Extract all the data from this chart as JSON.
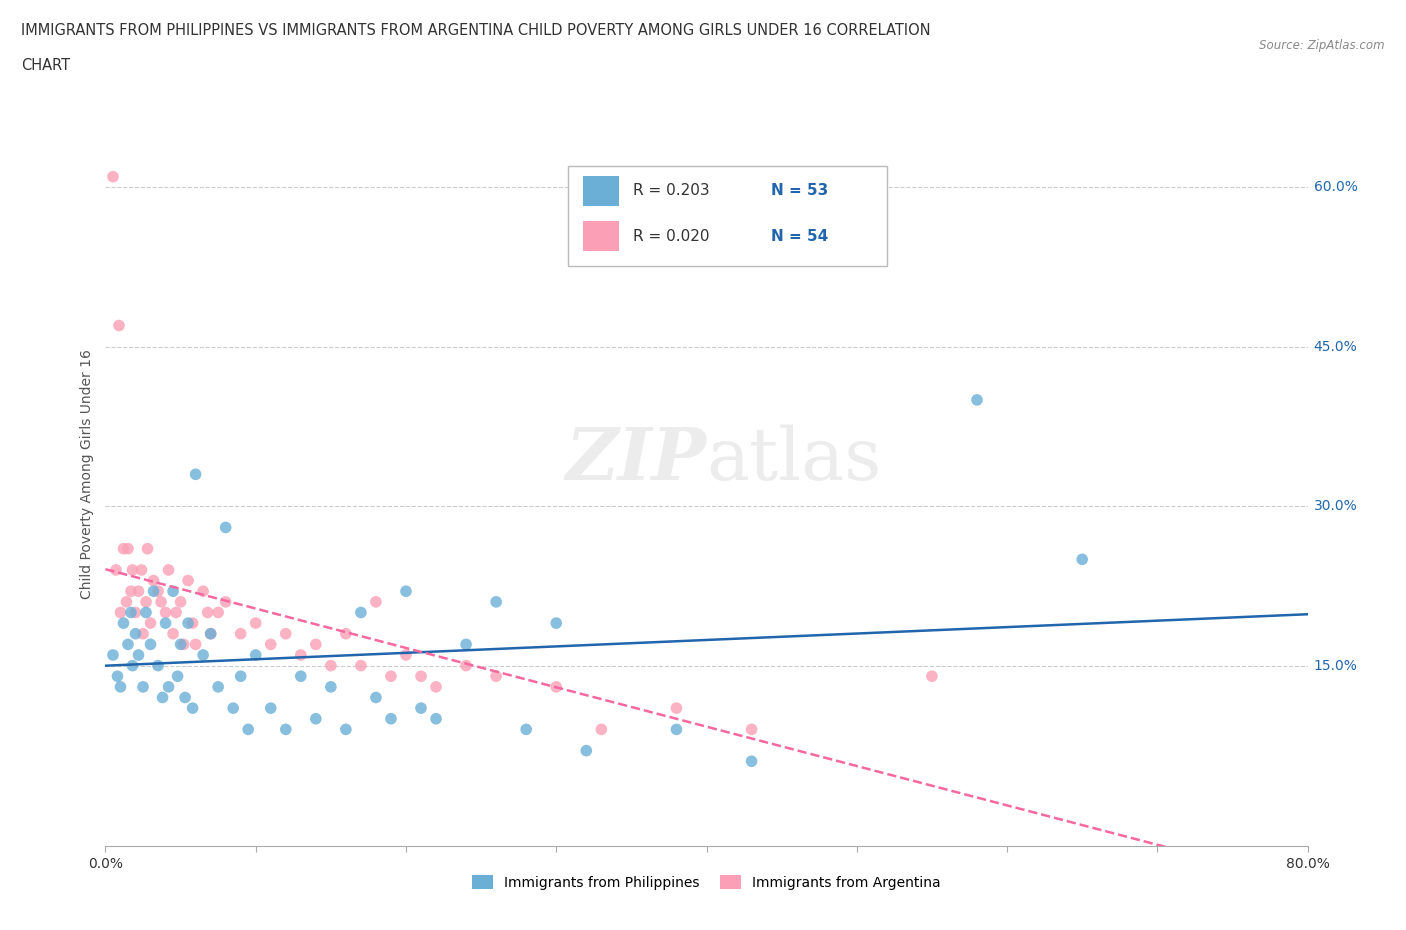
{
  "title_line1": "IMMIGRANTS FROM PHILIPPINES VS IMMIGRANTS FROM ARGENTINA CHILD POVERTY AMONG GIRLS UNDER 16 CORRELATION",
  "title_line2": "CHART",
  "source_text": "Source: ZipAtlas.com",
  "ylabel": "Child Poverty Among Girls Under 16",
  "xlim": [
    0.0,
    0.8
  ],
  "ylim": [
    -0.02,
    0.68
  ],
  "ytick_positions": [
    0.15,
    0.3,
    0.45,
    0.6
  ],
  "ytick_labels": [
    "15.0%",
    "30.0%",
    "45.0%",
    "60.0%"
  ],
  "watermark": "ZIPatlas",
  "R_philippines": 0.203,
  "N_philippines": 53,
  "R_argentina": 0.02,
  "N_argentina": 54,
  "blue_color": "#6baed6",
  "pink_color": "#fa9fb5",
  "blue_line_color": "#2166ac",
  "pink_line_color": "#f768a1",
  "legend_label_philippines": "Immigrants from Philippines",
  "legend_label_argentina": "Immigrants from Argentina",
  "philippines_x": [
    0.005,
    0.008,
    0.01,
    0.012,
    0.015,
    0.017,
    0.018,
    0.02,
    0.022,
    0.025,
    0.027,
    0.03,
    0.032,
    0.035,
    0.038,
    0.04,
    0.042,
    0.045,
    0.048,
    0.05,
    0.053,
    0.055,
    0.058,
    0.06,
    0.065,
    0.07,
    0.075,
    0.08,
    0.085,
    0.09,
    0.095,
    0.1,
    0.11,
    0.12,
    0.13,
    0.14,
    0.15,
    0.16,
    0.17,
    0.18,
    0.19,
    0.2,
    0.21,
    0.22,
    0.24,
    0.26,
    0.28,
    0.3,
    0.32,
    0.38,
    0.43,
    0.58,
    0.65
  ],
  "philippines_y": [
    0.16,
    0.14,
    0.13,
    0.19,
    0.17,
    0.2,
    0.15,
    0.18,
    0.16,
    0.13,
    0.2,
    0.17,
    0.22,
    0.15,
    0.12,
    0.19,
    0.13,
    0.22,
    0.14,
    0.17,
    0.12,
    0.19,
    0.11,
    0.33,
    0.16,
    0.18,
    0.13,
    0.28,
    0.11,
    0.14,
    0.09,
    0.16,
    0.11,
    0.09,
    0.14,
    0.1,
    0.13,
    0.09,
    0.2,
    0.12,
    0.1,
    0.22,
    0.11,
    0.1,
    0.17,
    0.21,
    0.09,
    0.19,
    0.07,
    0.09,
    0.06,
    0.4,
    0.25
  ],
  "argentina_x": [
    0.005,
    0.007,
    0.009,
    0.01,
    0.012,
    0.014,
    0.015,
    0.017,
    0.018,
    0.02,
    0.022,
    0.024,
    0.025,
    0.027,
    0.028,
    0.03,
    0.032,
    0.035,
    0.037,
    0.04,
    0.042,
    0.045,
    0.047,
    0.05,
    0.052,
    0.055,
    0.058,
    0.06,
    0.065,
    0.068,
    0.07,
    0.075,
    0.08,
    0.09,
    0.1,
    0.11,
    0.12,
    0.13,
    0.14,
    0.15,
    0.16,
    0.17,
    0.18,
    0.19,
    0.2,
    0.21,
    0.22,
    0.24,
    0.26,
    0.3,
    0.33,
    0.38,
    0.43,
    0.55
  ],
  "argentina_y": [
    0.61,
    0.24,
    0.47,
    0.2,
    0.26,
    0.21,
    0.26,
    0.22,
    0.24,
    0.2,
    0.22,
    0.24,
    0.18,
    0.21,
    0.26,
    0.19,
    0.23,
    0.22,
    0.21,
    0.2,
    0.24,
    0.18,
    0.2,
    0.21,
    0.17,
    0.23,
    0.19,
    0.17,
    0.22,
    0.2,
    0.18,
    0.2,
    0.21,
    0.18,
    0.19,
    0.17,
    0.18,
    0.16,
    0.17,
    0.15,
    0.18,
    0.15,
    0.21,
    0.14,
    0.16,
    0.14,
    0.13,
    0.15,
    0.14,
    0.13,
    0.09,
    0.11,
    0.09,
    0.14
  ]
}
